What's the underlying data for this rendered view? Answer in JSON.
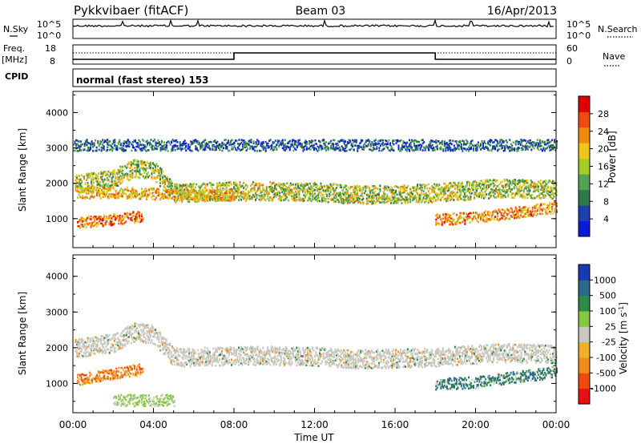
{
  "header": {
    "station": "Pykkvibaer (fitACF)",
    "beam": "Beam 03",
    "date": "16/Apr/2013"
  },
  "status_panels": {
    "left_top": "N.Sky",
    "left_bottom_freq": "Freq.",
    "left_bottom_unit": "[MHz]",
    "cpid_label": "CPID",
    "right_top": "N.Search",
    "right_bottom": "Nave",
    "power_ticks": [
      "10^5",
      "10^0"
    ],
    "right_power_ticks": [
      "10^5",
      "10^0"
    ],
    "freq_ticks": [
      "18",
      "8"
    ],
    "nave_ticks": [
      "60",
      "0"
    ],
    "cpid_text": "normal (fast stereo) 153"
  },
  "x_axis": {
    "label": "Time UT",
    "ticks": [
      "00:00",
      "04:00",
      "08:00",
      "12:00",
      "16:00",
      "20:00",
      "00:00"
    ]
  },
  "colors": {
    "power": [
      "#0a1bd8",
      "#1e3fae",
      "#2f7a4a",
      "#52a352",
      "#a3cc28",
      "#f0c418",
      "#f08c0c",
      "#ef4a10",
      "#e00000"
    ],
    "velocity": [
      "#e81010",
      "#ee4a10",
      "#f08c18",
      "#f0b028",
      "#c8c8c0",
      "#86c840",
      "#2e8a44",
      "#2a6a8a",
      "#1a3ab0"
    ],
    "freq_line": "#000000"
  },
  "chart_data": [
    {
      "type": "heatmap",
      "title": "",
      "xlabel": "Time UT",
      "ylabel": "Slant Range [km]",
      "xlim": [
        "00:00",
        "24:00"
      ],
      "ylim": [
        180,
        4600
      ],
      "yticks": [
        1000,
        2000,
        3000,
        4000
      ],
      "colorbar": {
        "label": "Power [dB]",
        "ticks": [
          4,
          8,
          12,
          16,
          20,
          24,
          28
        ],
        "range": [
          0,
          32
        ]
      },
      "bands": [
        {
          "x": [
            0.1,
            24.0
          ],
          "y_center": [
            2000,
            2150,
            2450,
            2400,
            1750,
            1800,
            1800,
            1780,
            1700,
            1720,
            1750,
            1880,
            1850
          ],
          "x_nodes": [
            0,
            2,
            3,
            4,
            5,
            8,
            10,
            12,
            14,
            16,
            18,
            21,
            24
          ],
          "level": 16
        },
        {
          "x": [
            0.2,
            8.0
          ],
          "y_center": [
            1750,
            1760,
            1730,
            1700,
            1680
          ],
          "x_nodes": [
            0,
            2,
            4,
            6,
            8
          ],
          "level": 22
        },
        {
          "x": [
            0.2,
            3.5
          ],
          "y_center": [
            900,
            950,
            1000,
            1100
          ],
          "x_nodes": [
            0,
            1,
            2,
            3.5
          ],
          "level": 26
        },
        {
          "x": [
            18.0,
            24.0
          ],
          "y_center": [
            1000,
            1050,
            1200,
            1350
          ],
          "x_nodes": [
            18,
            20,
            22,
            24
          ],
          "level": 24
        },
        {
          "x": [
            0.0,
            24.0
          ],
          "y_center": [
            3100,
            3100
          ],
          "x_nodes": [
            0,
            24
          ],
          "level": 6
        }
      ]
    },
    {
      "type": "heatmap",
      "title": "",
      "xlabel": "Time UT",
      "ylabel": "Slant Range [km]",
      "xlim": [
        "00:00",
        "24:00"
      ],
      "ylim": [
        180,
        4600
      ],
      "yticks": [
        1000,
        2000,
        3000,
        4000
      ],
      "colorbar": {
        "label": "Velocity [m s^-1]",
        "ticks": [
          -1000,
          -500,
          -100,
          -25,
          25,
          100,
          500,
          1000
        ]
      },
      "bands": [
        {
          "x": [
            0.1,
            24.0
          ],
          "y_center": [
            2000,
            2150,
            2450,
            2400,
            1750,
            1800,
            1800,
            1780,
            1700,
            1720,
            1750,
            1880,
            1850
          ],
          "x_nodes": [
            0,
            2,
            3,
            4,
            5,
            8,
            10,
            12,
            14,
            16,
            18,
            21,
            24
          ],
          "level": 0
        },
        {
          "x": [
            0.2,
            3.5
          ],
          "y_center": [
            1100,
            1200,
            1300,
            1450
          ],
          "x_nodes": [
            0,
            1,
            2,
            3.5
          ],
          "level": -400
        },
        {
          "x": [
            18.0,
            24.0
          ],
          "y_center": [
            1000,
            1050,
            1200,
            1350
          ],
          "x_nodes": [
            18,
            20,
            22,
            24
          ],
          "level": 400
        },
        {
          "x": [
            2.0,
            5.0
          ],
          "y_center": [
            550,
            550
          ],
          "x_nodes": [
            2,
            5
          ],
          "level": 60
        }
      ]
    }
  ]
}
